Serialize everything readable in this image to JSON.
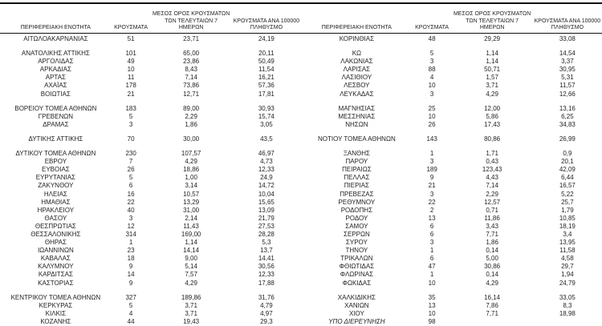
{
  "colors": {
    "background": "#ffffff",
    "text": "#1f1f1f",
    "border": "#111111"
  },
  "table": {
    "column_headers": {
      "region": "ΠΕΡΙΦΕΡΕΙΑΚΗ ΕΝΟΤΗΤΑ",
      "cases": "ΚΡΟΥΣΜΑΤΑ",
      "avg_7day": "ΜΕΣΟΣ ΟΡΟΣ ΚΡΟΥΣΜΑΤΩΝ\nΤΩΝ ΤΕΛΕΥΤΑΙΩΝ 7\nΗΜΕΡΩΝ",
      "per_100k": "ΚΡΟΥΣΜΑΤΑ ΑΝΑ 100000\nΠΛΗΘΥΣΜΟ"
    },
    "row_fields": [
      "region",
      "cases",
      "avg_7day",
      "per_100k"
    ],
    "italic_row_label": "ΥΠΟ ΔΙΕΡΕΥΝΗΣΗ",
    "left_sections": [
      [
        [
          "ΑΙΤΩΛΟΑΚΑΡΝΑΝΙΑΣ",
          "51",
          "23,71",
          "24,19"
        ]
      ],
      [
        [
          "ΑΝΑΤΟΛΙΚΗΣ ΑΤΤΙΚΗΣ",
          "101",
          "65,00",
          "20,11"
        ],
        [
          "ΑΡΓΟΛΙΔΑΣ",
          "49",
          "23,86",
          "50,49"
        ],
        [
          "ΑΡΚΑΔΙΑΣ",
          "10",
          "8,43",
          "11,54"
        ],
        [
          "ΑΡΤΑΣ",
          "11",
          "7,14",
          "16,21"
        ],
        [
          "ΑΧΑΪΑΣ",
          "178",
          "73,86",
          "57,36"
        ],
        [
          "ΒΟΙΩΤΙΑΣ",
          "21",
          "12,71",
          "17,81"
        ]
      ],
      [
        [
          "ΒΟΡΕΙΟΥ ΤΟΜΕΑ ΑΘΗΝΩΝ",
          "183",
          "89,00",
          "30,93"
        ],
        [
          "ΓΡΕΒΕΝΩΝ",
          "5",
          "2,29",
          "15,74"
        ],
        [
          "ΔΡΑΜΑΣ",
          "3",
          "1,86",
          "3,05"
        ]
      ],
      [
        [
          "ΔΥΤΙΚΗΣ ΑΤΤΙΚΗΣ",
          "70",
          "30,00",
          "43,5"
        ]
      ],
      [
        [
          "ΔΥΤΙΚΟΥ ΤΟΜΕΑ ΑΘΗΝΩΝ",
          "230",
          "107,57",
          "46,97"
        ],
        [
          "ΕΒΡΟΥ",
          "7",
          "4,29",
          "4,73"
        ],
        [
          "ΕΥΒΟΙΑΣ",
          "26",
          "18,86",
          "12,33"
        ],
        [
          "ΕΥΡΥΤΑΝΙΑΣ",
          "5",
          "1,00",
          "24,9"
        ],
        [
          "ΖΑΚΥΝΘΟΥ",
          "6",
          "3,14",
          "14,72"
        ],
        [
          "ΗΛΕΙΑΣ",
          "16",
          "10,57",
          "10,04"
        ],
        [
          "ΗΜΑΘΙΑΣ",
          "22",
          "13,29",
          "15,65"
        ],
        [
          "ΗΡΑΚΛΕΙΟΥ",
          "40",
          "31,00",
          "13,09"
        ],
        [
          "ΘΑΣΟΥ",
          "3",
          "2,14",
          "21,79"
        ],
        [
          "ΘΕΣΠΡΩΤΙΑΣ",
          "12",
          "11,43",
          "27,53"
        ],
        [
          "ΘΕΣΣΑΛΟΝΙΚΗΣ",
          "314",
          "169,00",
          "28,28"
        ],
        [
          "ΘΗΡΑΣ",
          "1",
          "1,14",
          "5,3"
        ],
        [
          "ΙΩΑΝΝΙΝΩΝ",
          "23",
          "14,14",
          "13,7"
        ],
        [
          "ΚΑΒΑΛΑΣ",
          "18",
          "9,00",
          "14,41"
        ],
        [
          "ΚΑΛΥΜΝΟΥ",
          "9",
          "5,14",
          "30,56"
        ],
        [
          "ΚΑΡΔΙΤΣΑΣ",
          "14",
          "7,57",
          "12,33"
        ],
        [
          "ΚΑΣΤΟΡΙΑΣ",
          "9",
          "4,29",
          "17,88"
        ]
      ],
      [
        [
          "ΚΕΝΤΡΙΚΟΥ ΤΟΜΕΑ ΑΘΗΝΩΝ",
          "327",
          "189,86",
          "31,76"
        ],
        [
          "ΚΕΡΚΥΡΑΣ",
          "5",
          "3,71",
          "4,79"
        ],
        [
          "ΚΙΛΚΙΣ",
          "4",
          "3,71",
          "4,97"
        ],
        [
          "ΚΟΖΑΝΗΣ",
          "44",
          "19,43",
          "29,3"
        ]
      ]
    ],
    "right_sections": [
      [
        [
          "ΚΟΡΙΝΘΙΑΣ",
          "48",
          "29,29",
          "33,08"
        ]
      ],
      [
        [
          "ΚΩ",
          "5",
          "1,14",
          "14,54"
        ],
        [
          "ΛΑΚΩΝΙΑΣ",
          "3",
          "1,14",
          "3,37"
        ],
        [
          "ΛΑΡΙΣΑΣ",
          "88",
          "50,71",
          "30,95"
        ],
        [
          "ΛΑΣΙΘΙΟΥ",
          "4",
          "1,57",
          "5,31"
        ],
        [
          "ΛΕΣΒΟΥ",
          "10",
          "3,71",
          "11,57"
        ],
        [
          "ΛΕΥΚΑΔΑΣ",
          "3",
          "4,29",
          "12,66"
        ]
      ],
      [
        [
          "ΜΑΓΝΗΣΙΑΣ",
          "25",
          "12,00",
          "13,16"
        ],
        [
          "ΜΕΣΣΗΝΙΑΣ",
          "10",
          "5,86",
          "6,25"
        ],
        [
          "ΝΗΣΩΝ",
          "26",
          "17,43",
          "34,83"
        ]
      ],
      [
        [
          "ΝΟΤΙΟΥ ΤΟΜΕΑ ΑΘΗΝΩΝ",
          "143",
          "80,86",
          "26,99"
        ]
      ],
      [
        [
          "ΞΑΝΘΗΣ",
          "1",
          "1,71",
          "0,9"
        ],
        [
          "ΠΑΡΟΥ",
          "3",
          "0,43",
          "20,1"
        ],
        [
          "ΠΕΙΡΑΙΩΣ",
          "189",
          "123,43",
          "42,09"
        ],
        [
          "ΠΕΛΛΑΣ",
          "9",
          "4,43",
          "6,44"
        ],
        [
          "ΠΙΕΡΙΑΣ",
          "21",
          "7,14",
          "16,57"
        ],
        [
          "ΠΡΕΒΕΖΑΣ",
          "3",
          "2,29",
          "5,22"
        ],
        [
          "ΡΕΘΥΜΝΟΥ",
          "22",
          "12,57",
          "25,7"
        ],
        [
          "ΡΟΔΟΠΗΣ",
          "2",
          "0,71",
          "1,79"
        ],
        [
          "ΡΟΔΟΥ",
          "13",
          "11,86",
          "10,85"
        ],
        [
          "ΣΑΜΟΥ",
          "6",
          "3,43",
          "18,19"
        ],
        [
          "ΣΕΡΡΩΝ",
          "6",
          "7,71",
          "3,4"
        ],
        [
          "ΣΥΡΟΥ",
          "3",
          "1,86",
          "13,95"
        ],
        [
          "ΤΗΝΟΥ",
          "1",
          "0,14",
          "11,58"
        ],
        [
          "ΤΡΙΚΑΛΩΝ",
          "6",
          "5,00",
          "4,58"
        ],
        [
          "ΦΘΙΩΤΙΔΑΣ",
          "47",
          "30,86",
          "29,7"
        ],
        [
          "ΦΛΩΡΙΝΑΣ",
          "1",
          "0,14",
          "1,94"
        ],
        [
          "ΦΩΚΙΔΑΣ",
          "10",
          "4,29",
          "24,79"
        ]
      ],
      [
        [
          "ΧΑΛΚΙΔΙΚΗΣ",
          "35",
          "16,14",
          "33,05"
        ],
        [
          "ΧΑΝΙΩΝ",
          "13",
          "7,86",
          "8,3"
        ],
        [
          "ΧΙΟΥ",
          "10",
          "7,71",
          "18,98"
        ],
        [
          "ΥΠΟ ΔΙΕΡΕΥΝΗΣΗ",
          "98",
          "",
          ""
        ]
      ]
    ]
  }
}
